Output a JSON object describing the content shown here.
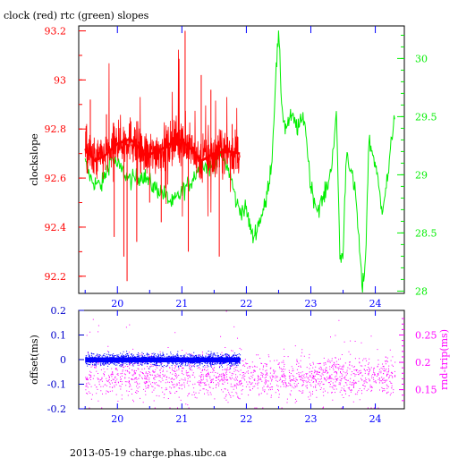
{
  "title": "clock (red) rtc (green) slopes",
  "footer": "2013-05-19 charge.phas.ubc.ca",
  "colors": {
    "red": "#ff0000",
    "green": "#00ee00",
    "blue": "#0000ff",
    "magenta": "#ff00ff",
    "frame": "#000000",
    "offset_axis": "#0000cc"
  },
  "chart_data": [
    {
      "type": "line",
      "xlim": [
        19.4,
        24.45
      ],
      "x_ticks": [
        "20",
        "21",
        "22",
        "23",
        "24"
      ],
      "y_left": {
        "label": "clockslope",
        "lim": [
          92.13,
          93.22
        ],
        "ticks": [
          "92.2",
          "92.4",
          "92.6",
          "92.8",
          "93",
          "93.2"
        ]
      },
      "y_right": {
        "lim": [
          27.98,
          30.28
        ],
        "ticks": [
          "28",
          "28.5",
          "29",
          "29.5",
          "30"
        ]
      },
      "series": [
        {
          "color": "red",
          "axis": "left",
          "x_range": [
            19.5,
            21.9
          ],
          "mean_curve_x": [
            19.5,
            19.65,
            19.8,
            20.0,
            20.2,
            20.45,
            20.7,
            20.95,
            21.1,
            21.3,
            21.5,
            21.7,
            21.9
          ],
          "mean_curve_y": [
            92.72,
            92.67,
            92.69,
            92.74,
            92.76,
            92.69,
            92.72,
            92.76,
            92.73,
            92.67,
            92.7,
            92.71,
            92.7
          ],
          "spikes": [
            {
              "x": 19.58,
              "y": 92.92
            },
            {
              "x": 19.83,
              "y": 92.86
            },
            {
              "x": 19.95,
              "y": 92.36
            },
            {
              "x": 20.1,
              "y": 92.28
            },
            {
              "x": 20.15,
              "y": 92.18
            },
            {
              "x": 20.3,
              "y": 92.34
            },
            {
              "x": 20.5,
              "y": 92.5
            },
            {
              "x": 20.68,
              "y": 92.42
            },
            {
              "x": 20.85,
              "y": 92.84
            },
            {
              "x": 21.05,
              "y": 93.2
            },
            {
              "x": 21.1,
              "y": 92.3
            },
            {
              "x": 21.3,
              "y": 93.02
            },
            {
              "x": 21.45,
              "y": 92.96
            },
            {
              "x": 21.58,
              "y": 92.28
            },
            {
              "x": 21.78,
              "y": 92.82
            }
          ]
        },
        {
          "color": "green",
          "axis": "right",
          "x": [
            19.5,
            19.6,
            19.75,
            19.9,
            20.05,
            20.2,
            20.4,
            20.55,
            20.7,
            20.85,
            21.0,
            21.15,
            21.3,
            21.45,
            21.6,
            21.75,
            21.85,
            21.9,
            22.0,
            22.1,
            22.2,
            22.3,
            22.4,
            22.45,
            22.5,
            22.55,
            22.6,
            22.7,
            22.8,
            22.9,
            23.0,
            23.1,
            23.2,
            23.3,
            23.4,
            23.45,
            23.5,
            23.55,
            23.6,
            23.7,
            23.8,
            23.85,
            23.9,
            24.0,
            24.1,
            24.2,
            24.3
          ],
          "y": [
            29.1,
            28.95,
            28.9,
            29.15,
            29.05,
            28.95,
            29.0,
            28.9,
            28.85,
            28.75,
            28.85,
            28.95,
            29.1,
            29.05,
            29.2,
            29.0,
            28.75,
            28.7,
            28.7,
            28.45,
            28.6,
            28.75,
            29.15,
            29.8,
            30.2,
            29.6,
            29.4,
            29.5,
            29.4,
            29.5,
            28.9,
            28.7,
            28.8,
            29.0,
            29.5,
            28.3,
            28.3,
            29.2,
            29.1,
            28.8,
            28.0,
            28.3,
            29.3,
            29.1,
            28.7,
            29.0,
            29.55
          ]
        }
      ]
    },
    {
      "type": "scatter",
      "xlim": [
        19.4,
        24.45
      ],
      "x_ticks": [
        "20",
        "21",
        "22",
        "23",
        "24"
      ],
      "y_left": {
        "label": "offset(ms)",
        "lim": [
          -0.2,
          0.2
        ],
        "ticks": [
          "-0.2",
          "-0.1",
          "0",
          "0.1",
          "0.2"
        ]
      },
      "y_right": {
        "label": "rnd-trip(ms)",
        "lim": [
          0.115,
          0.295
        ],
        "ticks": [
          "0.15",
          "0.2",
          "0.25"
        ]
      },
      "series": [
        {
          "color": "magenta",
          "axis": "right",
          "x_range": [
            19.5,
            24.3
          ],
          "center": 0.175,
          "spread": 0.03
        },
        {
          "color": "blue",
          "axis": "left",
          "x_range": [
            19.5,
            21.9
          ],
          "center": 0.0,
          "spread": 0.012
        }
      ]
    }
  ]
}
